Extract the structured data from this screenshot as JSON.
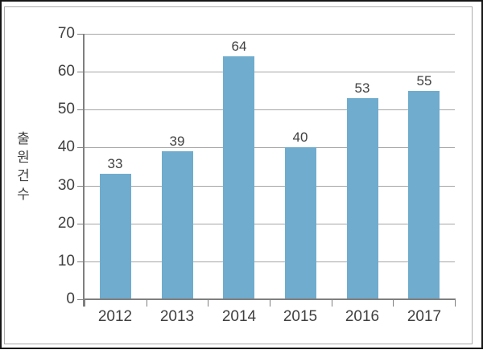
{
  "chart_data": {
    "type": "bar",
    "categories": [
      "2012",
      "2013",
      "2014",
      "2015",
      "2016",
      "2017"
    ],
    "values": [
      33,
      39,
      64,
      40,
      53,
      55
    ],
    "value_labels": [
      "33",
      "39",
      "64",
      "40",
      "53",
      "55"
    ],
    "title": "",
    "xlabel": "",
    "ylabel": "출원건수",
    "ylim": [
      0,
      70
    ],
    "ytick_step": 10,
    "ytick_labels": [
      "0",
      "10",
      "20",
      "30",
      "40",
      "50",
      "60",
      "70"
    ],
    "grid": true,
    "legend": "none",
    "colors": {
      "bar": "#6FACCE",
      "axis": "#7F7F7F",
      "grid": "#A6A6A6",
      "text": "#404040",
      "chart_border": "#ACACAC",
      "outer_border": "#161616",
      "background": "#FFFFFF"
    }
  }
}
